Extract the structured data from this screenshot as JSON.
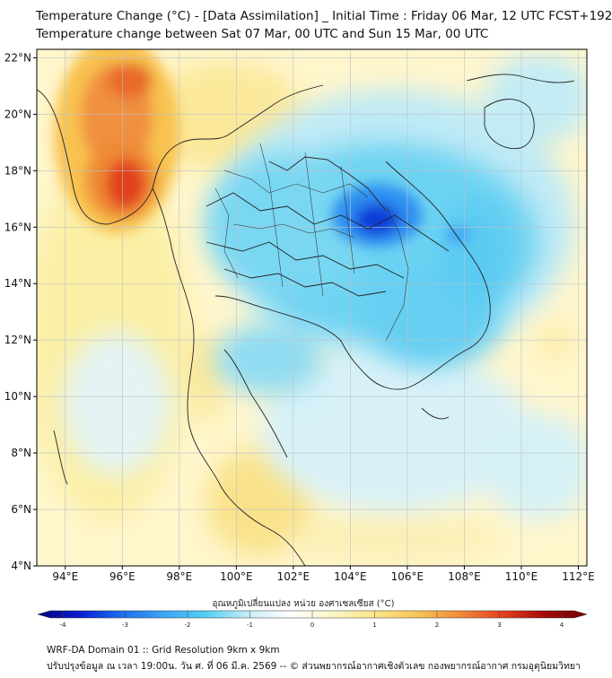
{
  "titles": {
    "line1": "Temperature Change (°C) - [Data Assimilation] _ Initial Time : Friday 06 Mar, 12 UTC FCST+192",
    "line2": "Temperature change between Sat 07 Mar, 00 UTC and Sun 15 Mar, 00 UTC"
  },
  "axes": {
    "lat_labels": [
      "22°N",
      "20°N",
      "18°N",
      "16°N",
      "14°N",
      "12°N",
      "10°N",
      "8°N",
      "6°N",
      "4°N"
    ],
    "lon_labels": [
      "94°E",
      "96°E",
      "98°E",
      "100°E",
      "102°E",
      "104°E",
      "106°E",
      "108°E",
      "110°E",
      "112°E"
    ],
    "lat_range": [
      4,
      22.3
    ],
    "lon_range": [
      93,
      112.3
    ]
  },
  "colorbar": {
    "label": "อุณหภูมิเปลี่ยนแปลง หน่วย องศาเซลเซียส (°C)",
    "min": -4,
    "max": 4,
    "tick_labels": [
      "-4",
      "-3",
      "-2",
      "-1",
      "0",
      "1",
      "2",
      "3",
      "4"
    ],
    "colors": [
      "#08007a",
      "#0a1fd0",
      "#1e6ff0",
      "#3aa6f4",
      "#54d0f2",
      "#c8eef8",
      "#ffffff",
      "#fbf6c4",
      "#fbe68a",
      "#f9c257",
      "#f18a38",
      "#e5401f",
      "#a40a0a",
      "#6e0000"
    ]
  },
  "map_colors": {
    "ocean_bg": "#fff6cc",
    "coast": "#222222",
    "grid": "#b9c2cc"
  },
  "footer": {
    "line1": "WRF-DA Domain 01 :: Grid Resolution 9km x 9km",
    "line2": "ปรับปรุงข้อมูล ณ เวลา 19:00น. วัน ศ. ที่ 06 มี.ค. 2569 -- © ส่วนพยากรณ์อากาศเชิงตัวเลข กองพยากรณ์อากาศ กรมอุตุนิยมวิทยา"
  }
}
